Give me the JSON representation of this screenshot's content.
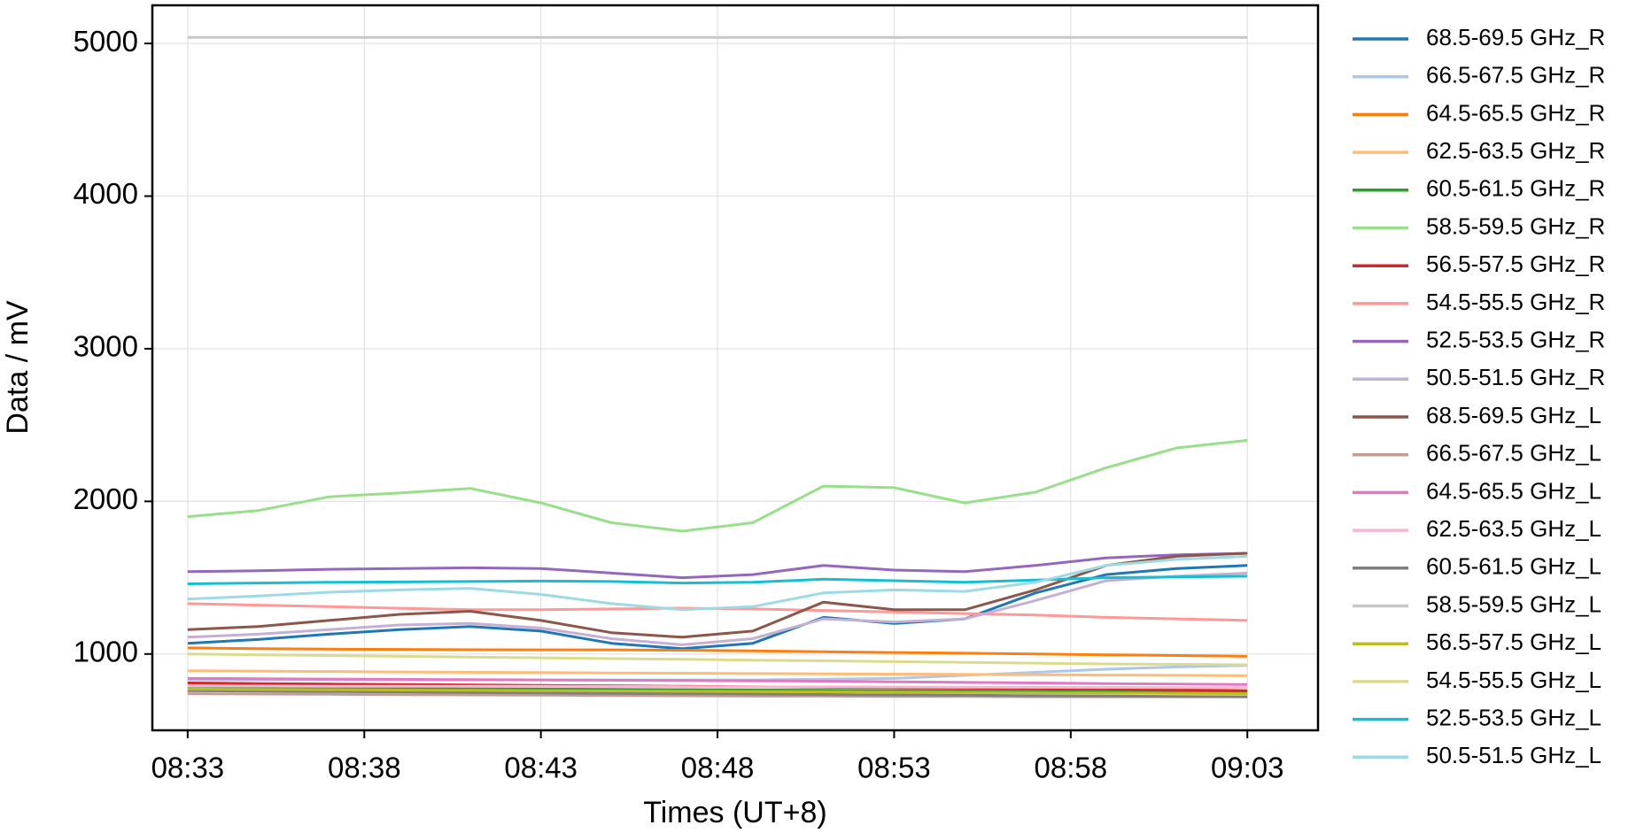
{
  "chart_data": {
    "type": "line",
    "x_label": "Times (UT+8)",
    "y_label": "Data / mV",
    "x": [
      "08:33",
      "08:35",
      "08:37",
      "08:39",
      "08:41",
      "08:43",
      "08:45",
      "08:47",
      "08:49",
      "08:51",
      "08:53",
      "08:55",
      "08:57",
      "08:59",
      "09:01",
      "09:03"
    ],
    "xlim": [
      "08:32",
      "09:05"
    ],
    "xticks": [
      "08:33",
      "08:38",
      "08:43",
      "08:48",
      "08:53",
      "08:58",
      "09:03"
    ],
    "ylim": [
      500,
      5250
    ],
    "yticks": [
      1000,
      2000,
      3000,
      4000,
      5000
    ],
    "grid": true,
    "legend": "outside right",
    "series": [
      {
        "name": "68.5-69.5 GHz_R",
        "color": "#1f77b4",
        "values": [
          1070,
          1095,
          1130,
          1160,
          1180,
          1150,
          1070,
          1035,
          1070,
          1240,
          1200,
          1230,
          1400,
          1520,
          1560,
          1580
        ]
      },
      {
        "name": "66.5-67.5 GHz_R",
        "color": "#aec7e8",
        "values": [
          830,
          830,
          830,
          830,
          830,
          830,
          830,
          830,
          830,
          835,
          840,
          860,
          880,
          900,
          915,
          925
        ]
      },
      {
        "name": "64.5-65.5 GHz_R",
        "color": "#ff7f0e",
        "values": [
          1040,
          1035,
          1032,
          1030,
          1028,
          1027,
          1027,
          1025,
          1020,
          1015,
          1010,
          1005,
          1000,
          995,
          990,
          985
        ]
      },
      {
        "name": "62.5-63.5 GHz_R",
        "color": "#ffbb78",
        "values": [
          890,
          888,
          885,
          882,
          880,
          878,
          876,
          874,
          872,
          870,
          868,
          866,
          864,
          862,
          860,
          858
        ]
      },
      {
        "name": "60.5-61.5 GHz_R",
        "color": "#2ca02c",
        "values": [
          780,
          778,
          776,
          774,
          772,
          770,
          768,
          766,
          764,
          762,
          760,
          758,
          756,
          754,
          752,
          750
        ]
      },
      {
        "name": "58.5-59.5 GHz_R",
        "color": "#98df8a",
        "values": [
          1900,
          1940,
          2030,
          2055,
          2085,
          1990,
          1860,
          1805,
          1860,
          2100,
          2090,
          1990,
          2060,
          2220,
          2350,
          2400
        ]
      },
      {
        "name": "56.5-57.5 GHz_R",
        "color": "#d62728",
        "values": [
          810,
          806,
          803,
          800,
          797,
          794,
          791,
          788,
          785,
          782,
          779,
          776,
          773,
          770,
          765,
          760
        ]
      },
      {
        "name": "54.5-55.5 GHz_R",
        "color": "#ff9896",
        "values": [
          1330,
          1320,
          1310,
          1300,
          1290,
          1290,
          1295,
          1300,
          1295,
          1285,
          1275,
          1265,
          1255,
          1240,
          1230,
          1220
        ]
      },
      {
        "name": "52.5-53.5 GHz_R",
        "color": "#9467bd",
        "values": [
          1540,
          1545,
          1555,
          1560,
          1565,
          1560,
          1530,
          1500,
          1520,
          1580,
          1550,
          1540,
          1580,
          1630,
          1650,
          1660
        ]
      },
      {
        "name": "50.5-51.5 GHz_R",
        "color": "#c5b0d5",
        "values": [
          1110,
          1130,
          1160,
          1190,
          1200,
          1170,
          1100,
          1060,
          1100,
          1230,
          1210,
          1230,
          1350,
          1480,
          1510,
          1530
        ]
      },
      {
        "name": "68.5-69.5 GHz_L",
        "color": "#8c564b",
        "values": [
          1160,
          1180,
          1220,
          1260,
          1280,
          1220,
          1140,
          1110,
          1150,
          1340,
          1290,
          1290,
          1420,
          1580,
          1640,
          1660
        ]
      },
      {
        "name": "66.5-67.5 GHz_L",
        "color": "#c49c94",
        "values": [
          740,
          738,
          736,
          734,
          732,
          730,
          728,
          726,
          724,
          724,
          722,
          722,
          720,
          720,
          720,
          720
        ]
      },
      {
        "name": "64.5-65.5 GHz_L",
        "color": "#e377c2",
        "values": [
          840,
          838,
          836,
          834,
          832,
          830,
          828,
          826,
          824,
          822,
          818,
          814,
          810,
          806,
          803,
          800
        ]
      },
      {
        "name": "62.5-63.5 GHz_L",
        "color": "#f7b6d2",
        "values": [
          790,
          790,
          789,
          789,
          788,
          788,
          787,
          786,
          785,
          785,
          784,
          783,
          782,
          781,
          780,
          780
        ]
      },
      {
        "name": "60.5-61.5 GHz_L",
        "color": "#7f7f7f",
        "values": [
          760,
          757,
          754,
          751,
          748,
          745,
          742,
          740,
          738,
          735,
          732,
          730,
          727,
          725,
          722,
          720
        ]
      },
      {
        "name": "58.5-59.5 GHz_L",
        "color": "#c7c7c7",
        "values": [
          5040,
          5040,
          5040,
          5040,
          5040,
          5040,
          5040,
          5040,
          5040,
          5040,
          5040,
          5040,
          5040,
          5040,
          5040,
          5040
        ]
      },
      {
        "name": "56.5-57.5 GHz_L",
        "color": "#bcbd22",
        "values": [
          770,
          768,
          766,
          764,
          762,
          760,
          758,
          756,
          754,
          752,
          750,
          748,
          746,
          744,
          742,
          740
        ]
      },
      {
        "name": "54.5-55.5 GHz_L",
        "color": "#dbdb8d",
        "values": [
          1000,
          995,
          990,
          985,
          980,
          975,
          970,
          965,
          960,
          955,
          950,
          945,
          940,
          935,
          932,
          930
        ]
      },
      {
        "name": "52.5-53.5 GHz_L",
        "color": "#17becf",
        "values": [
          1460,
          1465,
          1470,
          1472,
          1475,
          1478,
          1475,
          1465,
          1470,
          1490,
          1480,
          1470,
          1485,
          1500,
          1505,
          1510
        ]
      },
      {
        "name": "50.5-51.5 GHz_L",
        "color": "#9edae5",
        "values": [
          1360,
          1380,
          1405,
          1420,
          1430,
          1390,
          1330,
          1290,
          1310,
          1400,
          1420,
          1410,
          1470,
          1580,
          1620,
          1640
        ]
      }
    ]
  }
}
